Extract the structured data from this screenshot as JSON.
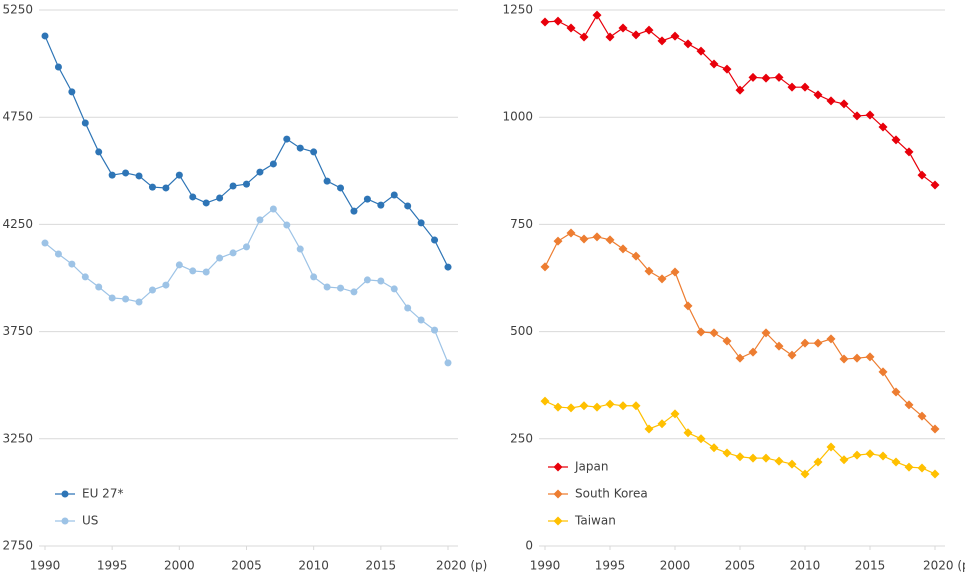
{
  "chart_data": [
    {
      "type": "line",
      "marker": "circle",
      "x": [
        1990,
        1991,
        1992,
        1993,
        1994,
        1995,
        1996,
        1997,
        1998,
        1999,
        2000,
        2001,
        2002,
        2003,
        2004,
        2005,
        2006,
        2007,
        2008,
        2009,
        2010,
        2011,
        2012,
        2013,
        2014,
        2015,
        2016,
        2017,
        2018,
        2019,
        2020
      ],
      "series": [
        {
          "name": "EU 27*",
          "color": "#2e75b6",
          "values": [
            5129,
            4984,
            4868,
            4723,
            4588,
            4480,
            4490,
            4476,
            4424,
            4420,
            4480,
            4378,
            4350,
            4373,
            4429,
            4438,
            4494,
            4532,
            4648,
            4606,
            4588,
            4452,
            4420,
            4312,
            4368,
            4340,
            4387,
            4336,
            4257,
            4177,
            4051
          ]
        },
        {
          "name": "US",
          "color": "#9dc3e6",
          "values": [
            4163,
            4112,
            4065,
            4005,
            3958,
            3907,
            3902,
            3888,
            3944,
            3967,
            4061,
            4033,
            4028,
            4093,
            4117,
            4145,
            4271,
            4322,
            4247,
            4135,
            4005,
            3958,
            3953,
            3935,
            3991,
            3986,
            3949,
            3860,
            3804,
            3757,
            3604
          ]
        }
      ],
      "xlim": [
        1990,
        2020
      ],
      "xticks": [
        1990,
        1995,
        2000,
        2005,
        2010,
        2015,
        {
          "value": 2020,
          "label": "2020 (p)"
        }
      ],
      "ylim": [
        2750,
        5250
      ],
      "yticks": [
        2750,
        3250,
        3750,
        4250,
        4750,
        5250
      ],
      "grid": true,
      "legend": "lower left"
    },
    {
      "type": "line",
      "marker": "diamond",
      "x": [
        1990,
        1991,
        1992,
        1993,
        1994,
        1995,
        1996,
        1997,
        1998,
        1999,
        2000,
        2001,
        2002,
        2003,
        2004,
        2005,
        2006,
        2007,
        2008,
        2009,
        2010,
        2011,
        2012,
        2013,
        2014,
        2015,
        2016,
        2017,
        2018,
        2019,
        2020
      ],
      "series": [
        {
          "name": "Japan",
          "color": "#e8000b",
          "values": [
            1222,
            1224,
            1208,
            1187,
            1238,
            1187,
            1208,
            1192,
            1203,
            1178,
            1189,
            1171,
            1154,
            1124,
            1112,
            1063,
            1093,
            1091,
            1093,
            1070,
            1070,
            1052,
            1038,
            1031,
            1003,
            1005,
            977,
            947,
            919,
            865,
            842
          ]
        },
        {
          "name": "South Korea",
          "color": "#ed7d31",
          "values": [
            651,
            711,
            730,
            716,
            721,
            714,
            693,
            676,
            641,
            623,
            639,
            560,
            499,
            497,
            478,
            438,
            452,
            497,
            466,
            445,
            473,
            473,
            483,
            436,
            438,
            441,
            406,
            359,
            329,
            303,
            273
          ]
        },
        {
          "name": "Taiwan",
          "color": "#ffc000",
          "values": [
            338,
            324,
            322,
            327,
            324,
            331,
            327,
            327,
            273,
            285,
            308,
            264,
            250,
            229,
            217,
            208,
            205,
            205,
            198,
            191,
            168,
            196,
            231,
            201,
            212,
            215,
            210,
            196,
            184,
            182,
            168
          ]
        }
      ],
      "xlim": [
        1990,
        2020
      ],
      "xticks": [
        1990,
        1995,
        2000,
        2005,
        2010,
        2015,
        {
          "value": 2020,
          "label": "2020 (p)"
        }
      ],
      "ylim": [
        0,
        1250
      ],
      "yticks": [
        0,
        250,
        500,
        750,
        1000,
        1250
      ],
      "grid": true,
      "legend": "lower left"
    }
  ]
}
